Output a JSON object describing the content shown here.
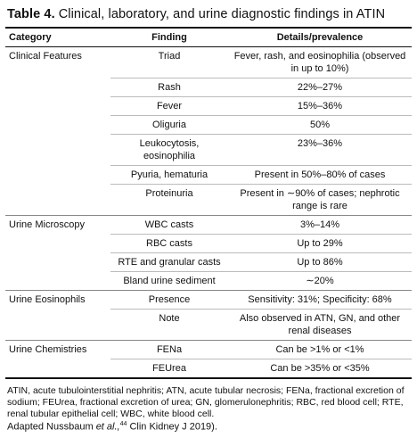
{
  "title": {
    "label": "Table 4.",
    "text": "Clinical, laboratory, and urine diagnostic findings in ATIN"
  },
  "table": {
    "columns": [
      "Category",
      "Finding",
      "Details/prevalence"
    ],
    "rows": [
      {
        "category": "Clinical Features",
        "finding": "Triad",
        "details": "Fever, rash, and eosinophilia (observed in up to 10%)"
      },
      {
        "finding": "Rash",
        "details": "22%–27%"
      },
      {
        "finding": "Fever",
        "details": "15%–36%"
      },
      {
        "finding": "Oliguria",
        "details": "50%"
      },
      {
        "finding": "Leukocytosis, eosinophilia",
        "details": "23%–36%"
      },
      {
        "finding": "Pyuria, hematuria",
        "details": "Present in 50%–80% of cases"
      },
      {
        "finding": "Proteinuria",
        "details": "Present in ∼90% of cases; nephrotic range is rare"
      },
      {
        "category": "Urine Microscopy",
        "finding": "WBC casts",
        "details": "3%–14%"
      },
      {
        "finding": "RBC casts",
        "details": "Up to 29%"
      },
      {
        "finding": "RTE and granular casts",
        "details": "Up to 86%"
      },
      {
        "finding": "Bland urine sediment",
        "details": "∼20%"
      },
      {
        "category": "Urine Eosinophils",
        "finding": "Presence",
        "details": "Sensitivity: 31%; Specificity: 68%"
      },
      {
        "finding": "Note",
        "details": "Also observed in ATN, GN, and other renal diseases"
      },
      {
        "category": "Urine Chemistries",
        "finding": "FENa",
        "details": "Can be >1% or <1%"
      },
      {
        "finding": "FEUrea",
        "details": "Can be >35% or <35%"
      }
    ]
  },
  "footnote": "ATIN, acute tubulointerstitial nephritis; ATN, acute tubular necrosis; FENa, fractional excretion of sodium; FEUrea, fractional excretion of urea; GN, glomerulonephritis; RBC, red blood cell; RTE, renal tubular epithelial cell; WBC, white blood cell.",
  "citation": {
    "prefix": "Adapted Nussbaum",
    "emphasis": "et al.,",
    "superscript": "44",
    "suffix": "Clin Kidney J 2019)."
  }
}
